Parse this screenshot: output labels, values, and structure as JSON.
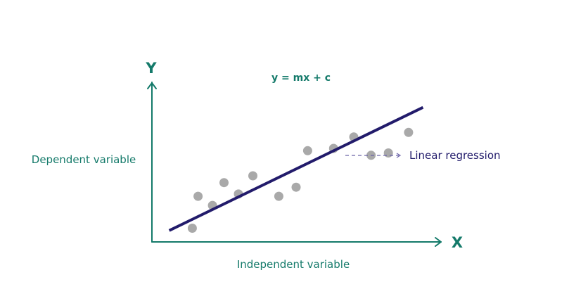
{
  "colors": {
    "teal": "#147a6a",
    "navy": "#221b6b",
    "point": "#a9a9a9",
    "dash": "#6b63a8"
  },
  "chart_data": {
    "type": "scatter",
    "title": "y = mx + c",
    "xlabel": "Independent variable",
    "ylabel": "Dependent variable",
    "x_axis_letter": "X",
    "y_axis_letter": "Y",
    "xlim": [
      0,
      10
    ],
    "ylim": [
      0,
      7
    ],
    "grid": false,
    "legend": "none",
    "points": [
      {
        "x": 1.4,
        "y": 0.6
      },
      {
        "x": 1.6,
        "y": 2.0
      },
      {
        "x": 2.1,
        "y": 1.6
      },
      {
        "x": 2.5,
        "y": 2.6
      },
      {
        "x": 3.0,
        "y": 2.1
      },
      {
        "x": 3.5,
        "y": 2.9
      },
      {
        "x": 4.4,
        "y": 2.0
      },
      {
        "x": 5.0,
        "y": 2.4
      },
      {
        "x": 5.4,
        "y": 4.0
      },
      {
        "x": 6.3,
        "y": 4.1
      },
      {
        "x": 7.0,
        "y": 4.6
      },
      {
        "x": 7.6,
        "y": 3.8
      },
      {
        "x": 8.2,
        "y": 3.9
      },
      {
        "x": 8.9,
        "y": 4.8
      }
    ],
    "regression_line": {
      "x": [
        0.6,
        9.4
      ],
      "y": [
        0.5,
        5.9
      ]
    },
    "annotation": {
      "text": "Linear regression"
    }
  }
}
